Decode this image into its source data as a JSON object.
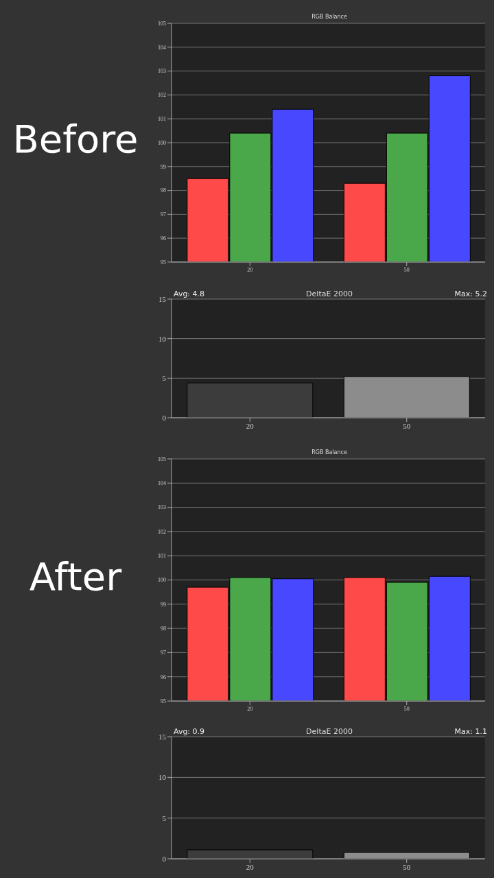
{
  "chart_data": [
    {
      "type": "bar",
      "title": "RGB Balance",
      "subtitle": "Before",
      "categories": [
        "20",
        "50"
      ],
      "series": [
        {
          "color": "#ff4a4a",
          "values": [
            98.5,
            98.3
          ]
        },
        {
          "color": "#4aa84a",
          "values": [
            100.4,
            100.4
          ]
        },
        {
          "color": "#4848ff",
          "values": [
            101.4,
            102.8
          ]
        }
      ],
      "ylim": [
        95,
        105
      ],
      "yticks": [
        95,
        96,
        97,
        98,
        99,
        100,
        101,
        102,
        103,
        104,
        105
      ],
      "grid": "y",
      "legend": false
    },
    {
      "type": "bar",
      "title": "DeltaE 2000",
      "annotations": [
        "Avg: 4.8",
        "Max: 5.2"
      ],
      "categories": [
        "20",
        "50"
      ],
      "values": [
        4.4,
        5.2
      ],
      "colors": [
        "#3c3c3c",
        "#8c8c8c"
      ],
      "ylim": [
        0,
        15
      ],
      "yticks": [
        0,
        5,
        10,
        15
      ],
      "grid": "y",
      "legend": false
    },
    {
      "type": "bar",
      "title": "RGB Balance",
      "subtitle": "After",
      "categories": [
        "20",
        "50"
      ],
      "series": [
        {
          "color": "#ff4a4a",
          "values": [
            99.7,
            100.1
          ]
        },
        {
          "color": "#4aa84a",
          "values": [
            100.1,
            99.9
          ]
        },
        {
          "color": "#4848ff",
          "values": [
            100.05,
            100.15
          ]
        }
      ],
      "ylim": [
        95,
        105
      ],
      "yticks": [
        95,
        96,
        97,
        98,
        99,
        100,
        101,
        102,
        103,
        104,
        105
      ],
      "grid": "y",
      "legend": false
    },
    {
      "type": "bar",
      "title": "DeltaE 2000",
      "annotations": [
        "Avg: 0.9",
        "Max: 1.1"
      ],
      "categories": [
        "20",
        "50"
      ],
      "values": [
        1.1,
        0.8
      ],
      "colors": [
        "#3c3c3c",
        "#8c8c8c"
      ],
      "ylim": [
        0,
        15
      ],
      "yticks": [
        0,
        5,
        10,
        15
      ],
      "grid": "y",
      "legend": false
    }
  ]
}
